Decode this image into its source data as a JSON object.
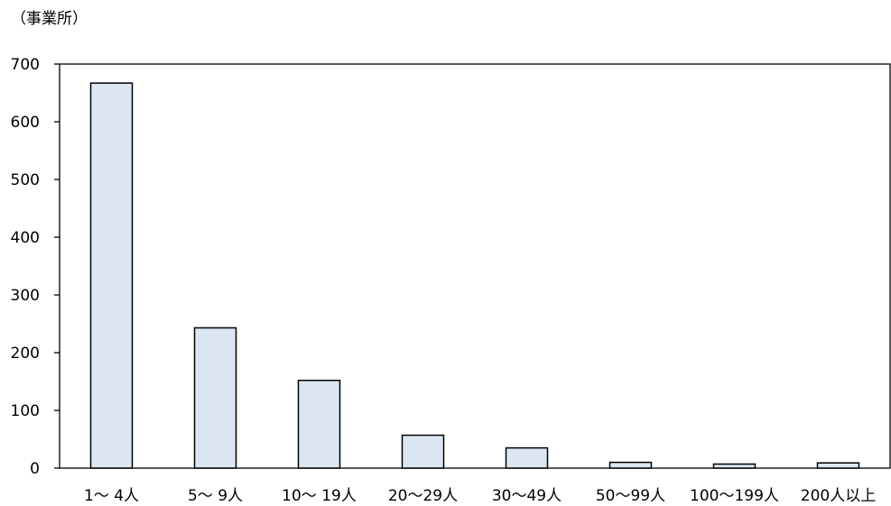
{
  "chart_data": {
    "type": "bar",
    "y_unit_label": "（事業所）",
    "categories": [
      "1～ 4人",
      "5～ 9人",
      "10～ 19人",
      "20～29人",
      "30～49人",
      "50～99人",
      "100～199人",
      "200人以上"
    ],
    "values": [
      667,
      243,
      152,
      57,
      35,
      10,
      7,
      9
    ],
    "ylim": [
      0,
      700
    ],
    "yticks": [
      0,
      100,
      200,
      300,
      400,
      500,
      600,
      700
    ],
    "grid": false,
    "legend": "none",
    "bar_fill": "#dce6f2",
    "bar_stroke": "#000000"
  }
}
